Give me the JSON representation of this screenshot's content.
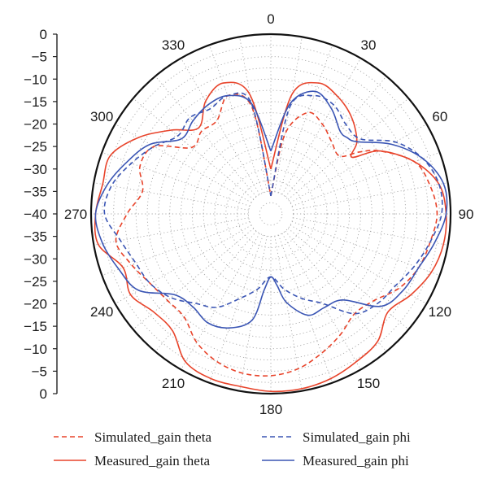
{
  "chart_data": {
    "type": "polar-line",
    "title": "",
    "radial_axis": {
      "min": -40,
      "max": 0,
      "ticks_labels": [
        "0",
        "−5",
        "−10",
        "−15",
        "−20",
        "−25",
        "−30",
        "−35",
        "−40",
        "−35",
        "−30",
        "−25",
        "−20",
        "−15",
        "−10",
        "−5",
        "0"
      ],
      "tick_values": [
        0,
        -5,
        -10,
        -15,
        -20,
        -25,
        -30,
        -35,
        -40,
        -35,
        -30,
        -25,
        -20,
        -15,
        -10,
        -5,
        0
      ]
    },
    "angular_axis": {
      "labels": [
        "0",
        "30",
        "60",
        "90",
        "120",
        "150",
        "180",
        "210",
        "240",
        "270",
        "300",
        "330"
      ],
      "values": [
        0,
        30,
        60,
        90,
        120,
        150,
        180,
        210,
        240,
        270,
        300,
        330
      ],
      "direction": "clockwise",
      "zero_location": "top"
    },
    "grid": true,
    "legend_position": "bottom",
    "colors": {
      "theta": "#e8432a",
      "phi": "#3a55b4"
    },
    "series": [
      {
        "name": "Simulated_gain theta",
        "style": "dashed",
        "color": "#e8432a",
        "points": [
          [
            0,
            -36
          ],
          [
            10,
            -22
          ],
          [
            20,
            -16
          ],
          [
            30,
            -17
          ],
          [
            40,
            -19
          ],
          [
            50,
            -20
          ],
          [
            55,
            -16
          ],
          [
            60,
            -12
          ],
          [
            70,
            -6
          ],
          [
            80,
            -4
          ],
          [
            90,
            -3
          ],
          [
            100,
            -4
          ],
          [
            110,
            -5
          ],
          [
            120,
            -7
          ],
          [
            130,
            -10
          ],
          [
            140,
            -11
          ],
          [
            150,
            -9
          ],
          [
            160,
            -7
          ],
          [
            170,
            -5
          ],
          [
            180,
            -4
          ],
          [
            190,
            -4
          ],
          [
            200,
            -5
          ],
          [
            210,
            -7
          ],
          [
            220,
            -10
          ],
          [
            230,
            -10
          ],
          [
            240,
            -9
          ],
          [
            250,
            -7
          ],
          [
            260,
            -5
          ],
          [
            270,
            -8
          ],
          [
            280,
            -11
          ],
          [
            290,
            -9
          ],
          [
            300,
            -10
          ],
          [
            310,
            -17
          ],
          [
            320,
            -16
          ],
          [
            330,
            -16
          ],
          [
            340,
            -12
          ],
          [
            350,
            -16
          ],
          [
            360,
            -36
          ]
        ]
      },
      {
        "name": "Measured_gain theta",
        "style": "solid",
        "color": "#e8432a",
        "points": [
          [
            0,
            -30
          ],
          [
            10,
            -13
          ],
          [
            20,
            -9
          ],
          [
            30,
            -10
          ],
          [
            40,
            -12
          ],
          [
            50,
            -15
          ],
          [
            55,
            -18
          ],
          [
            60,
            -12
          ],
          [
            70,
            -6
          ],
          [
            80,
            -2
          ],
          [
            90,
            -1
          ],
          [
            100,
            -1
          ],
          [
            110,
            -2
          ],
          [
            120,
            -4
          ],
          [
            130,
            -6
          ],
          [
            140,
            -3
          ],
          [
            150,
            -2
          ],
          [
            160,
            -1
          ],
          [
            170,
            -0.5
          ],
          [
            180,
            -0.5
          ],
          [
            190,
            -1
          ],
          [
            200,
            -1
          ],
          [
            210,
            -2
          ],
          [
            220,
            -6
          ],
          [
            230,
            -6
          ],
          [
            240,
            -4
          ],
          [
            250,
            -5
          ],
          [
            260,
            -1
          ],
          [
            270,
            -1
          ],
          [
            280,
            -2
          ],
          [
            290,
            -2
          ],
          [
            300,
            -6
          ],
          [
            310,
            -11
          ],
          [
            320,
            -15
          ],
          [
            330,
            -11
          ],
          [
            340,
            -9
          ],
          [
            350,
            -13
          ],
          [
            360,
            -30
          ]
        ]
      },
      {
        "name": "Simulated_gain phi",
        "style": "dashed",
        "color": "#3a55b4",
        "points": [
          [
            0,
            -36
          ],
          [
            10,
            -16
          ],
          [
            20,
            -12
          ],
          [
            30,
            -12
          ],
          [
            40,
            -14
          ],
          [
            50,
            -14
          ],
          [
            60,
            -8
          ],
          [
            70,
            -4
          ],
          [
            80,
            -2
          ],
          [
            90,
            -2
          ],
          [
            100,
            -4
          ],
          [
            110,
            -6
          ],
          [
            120,
            -8
          ],
          [
            130,
            -9
          ],
          [
            140,
            -11
          ],
          [
            150,
            -17
          ],
          [
            160,
            -20
          ],
          [
            170,
            -23
          ],
          [
            180,
            -26
          ],
          [
            190,
            -23
          ],
          [
            200,
            -20
          ],
          [
            210,
            -16
          ],
          [
            220,
            -14
          ],
          [
            230,
            -11
          ],
          [
            240,
            -9
          ],
          [
            250,
            -8
          ],
          [
            260,
            -6
          ],
          [
            270,
            -3
          ],
          [
            280,
            -4
          ],
          [
            290,
            -7
          ],
          [
            300,
            -10
          ],
          [
            310,
            -13
          ],
          [
            320,
            -12
          ],
          [
            330,
            -13
          ],
          [
            340,
            -12
          ],
          [
            350,
            -15
          ],
          [
            360,
            -36
          ]
        ]
      },
      {
        "name": "Measured_gain phi",
        "style": "solid",
        "color": "#3a55b4",
        "points": [
          [
            0,
            -26
          ],
          [
            10,
            -15
          ],
          [
            20,
            -11
          ],
          [
            30,
            -13
          ],
          [
            40,
            -16
          ],
          [
            45,
            -16
          ],
          [
            50,
            -15
          ],
          [
            60,
            -9
          ],
          [
            70,
            -4
          ],
          [
            80,
            -1
          ],
          [
            90,
            -1
          ],
          [
            100,
            -3
          ],
          [
            110,
            -5
          ],
          [
            120,
            -6
          ],
          [
            130,
            -8
          ],
          [
            140,
            -15
          ],
          [
            150,
            -16
          ],
          [
            160,
            -16
          ],
          [
            170,
            -20
          ],
          [
            175,
            -24
          ],
          [
            180,
            -26
          ],
          [
            185,
            -23
          ],
          [
            190,
            -16
          ],
          [
            200,
            -13
          ],
          [
            210,
            -12
          ],
          [
            220,
            -13
          ],
          [
            230,
            -12
          ],
          [
            240,
            -6
          ],
          [
            250,
            -4
          ],
          [
            260,
            -2
          ],
          [
            270,
            -1
          ],
          [
            280,
            -3
          ],
          [
            290,
            -6
          ],
          [
            300,
            -9
          ],
          [
            310,
            -14
          ],
          [
            320,
            -13
          ],
          [
            330,
            -12
          ],
          [
            340,
            -12
          ],
          [
            350,
            -15
          ],
          [
            360,
            -26
          ]
        ]
      }
    ],
    "legend": [
      "Simulated_gain theta",
      "Simulated_gain phi",
      "Measured_gain theta",
      "Measured_gain phi"
    ]
  }
}
